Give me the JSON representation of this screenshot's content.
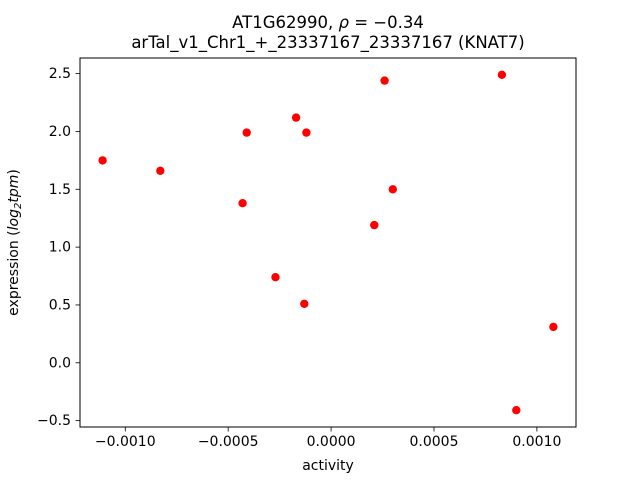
{
  "figure": {
    "title_line1": {
      "prefix": "AT1G62990, ",
      "rho": "ρ",
      "rest": " = −0.34"
    },
    "title_line2": "arTal_v1_Chr1_+_23337167_23337167 (KNAT7)",
    "xlabel": "activity",
    "ylabel": {
      "prefix": "expression (",
      "log": "log",
      "sub": "2",
      "tpm": "tpm",
      "suffix": ")"
    }
  },
  "chart_data": {
    "type": "scatter",
    "title": "AT1G62990, ρ = −0.34\narTal_v1_Chr1_+_23337167_23337167 (KNAT7)",
    "xlabel": "activity",
    "ylabel": "expression (log2 tpm)",
    "legend": "none",
    "grid": false,
    "marker": "circle",
    "marker_color": "#ff0000",
    "xlim": [
      -0.00122,
      0.00119
    ],
    "ylim": [
      -0.555,
      2.635
    ],
    "xticks": [
      {
        "value": -0.001,
        "label": "−0.0010"
      },
      {
        "value": -0.0005,
        "label": "−0.0005"
      },
      {
        "value": 0.0,
        "label": "0.0000"
      },
      {
        "value": 0.0005,
        "label": "0.0005"
      },
      {
        "value": 0.001,
        "label": "0.0010"
      }
    ],
    "yticks": [
      {
        "value": -0.5,
        "label": "−0.5"
      },
      {
        "value": 0.0,
        "label": "0.0"
      },
      {
        "value": 0.5,
        "label": "0.5"
      },
      {
        "value": 1.0,
        "label": "1.0"
      },
      {
        "value": 1.5,
        "label": "1.5"
      },
      {
        "value": 2.0,
        "label": "2.0"
      },
      {
        "value": 2.5,
        "label": "2.5"
      }
    ],
    "points": [
      [
        -0.00111,
        1.75
      ],
      [
        -0.00083,
        1.66
      ],
      [
        -0.00043,
        1.38
      ],
      [
        -0.00041,
        1.99
      ],
      [
        -0.00027,
        0.74
      ],
      [
        -0.00017,
        2.12
      ],
      [
        -0.00013,
        0.51
      ],
      [
        -0.00012,
        1.99
      ],
      [
        0.00021,
        1.19
      ],
      [
        0.00026,
        2.44
      ],
      [
        0.0003,
        1.5
      ],
      [
        0.00083,
        2.49
      ],
      [
        0.0009,
        -0.41
      ],
      [
        0.00108,
        0.31
      ]
    ]
  }
}
